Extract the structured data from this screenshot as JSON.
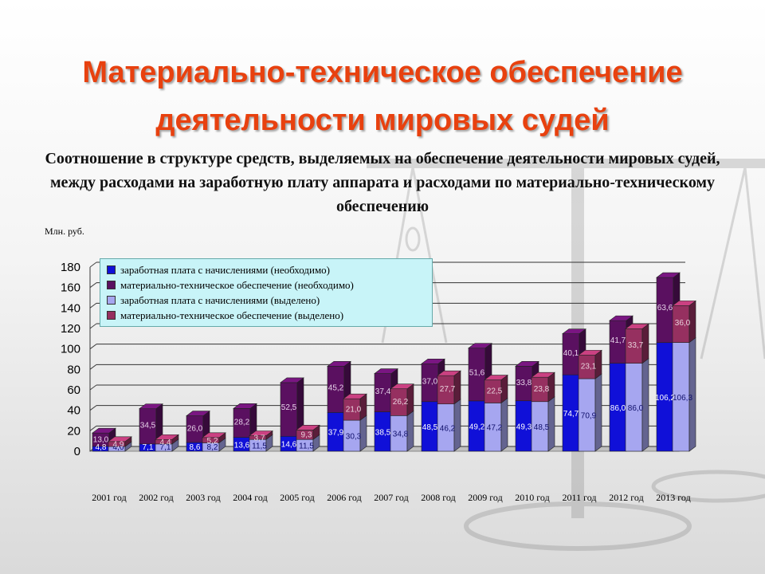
{
  "title_line1": "Материально-техническое обеспечение",
  "title_line2": "деятельности мировых судей",
  "subtitle": "Соотношение в структуре средств, выделяемых на обеспечение деятельности мировых судей, между расходами на заработную плату аппарата и расходами по материально-техническому обеспечению",
  "colors": {
    "title": "#e8410f",
    "salary_needed": "#1010d8",
    "material_needed": "#5a1060",
    "salary_allocated": "#a6a6f0",
    "material_allocated": "#963060",
    "legend_bg": "#c8f4f8"
  },
  "chart_data": {
    "type": "bar",
    "ylabel": "Млн. руб.",
    "ylim": [
      0,
      180
    ],
    "yticks": [
      0,
      20,
      40,
      60,
      80,
      100,
      120,
      140,
      160,
      180
    ],
    "grid": true,
    "legend_position": "top-left",
    "categories": [
      "2001 год",
      "2002 год",
      "2003 год",
      "2004 год",
      "2005 год",
      "2006 год",
      "2007 год",
      "2008 год",
      "2009 год",
      "2010 год",
      "2011 год",
      "2012 год",
      "2013 год"
    ],
    "series": [
      {
        "name": "заработная плата с начислениями (необходимо)",
        "stack": "needed",
        "values": [
          4.8,
          7.1,
          8.6,
          13.6,
          14.6,
          37.9,
          38.5,
          48.5,
          49.2,
          49.3,
          74.7,
          86.0,
          106.2
        ]
      },
      {
        "name": "материально-техническое обеспечение (необходимо)",
        "stack": "needed",
        "values": [
          13.0,
          34.5,
          26.0,
          28.2,
          52.5,
          45.2,
          37.4,
          37.0,
          51.6,
          33.8,
          40.1,
          41.7,
          63.6
        ]
      },
      {
        "name": "заработная плата с начислениями (выделено)",
        "stack": "allocated",
        "values": [
          4.6,
          7.1,
          8.2,
          11.5,
          11.5,
          30.3,
          34.8,
          46.2,
          47.2,
          48.5,
          70.9,
          86.0,
          106.3
        ]
      },
      {
        "name": "материально-техническое обеспечение (выделено)",
        "stack": "allocated",
        "values": [
          4.9,
          4.4,
          5.2,
          3.7,
          9.3,
          21.0,
          26.2,
          27.7,
          22.5,
          23.8,
          23.1,
          33.7,
          36.0
        ]
      }
    ],
    "value_labels": [
      [
        "4,8",
        "7,1",
        "8,6",
        "13,6",
        "14,6",
        "37,9",
        "38,5",
        "48,5",
        "49,2",
        "49,3",
        "74,7",
        "86,0",
        "106,2"
      ],
      [
        "13,0",
        "34,5",
        "26,0",
        "28,2",
        "52,5",
        "45,2",
        "37,4",
        "37,0",
        "51,6",
        "33,8",
        "40,1",
        "41,7",
        "63,6"
      ],
      [
        "4,6",
        "7,1",
        "8,2",
        "11,5",
        "11,5",
        "30,3",
        "34,8",
        "46,2",
        "47,2",
        "48,5",
        "70,9",
        "86,0",
        "106,3"
      ],
      [
        "4,9",
        "4,4",
        "5,2",
        "3,7",
        "9,3",
        "21,0",
        "26,2",
        "27,7",
        "22,5",
        "23,8",
        "23,1",
        "33,7",
        "36,0"
      ]
    ]
  }
}
